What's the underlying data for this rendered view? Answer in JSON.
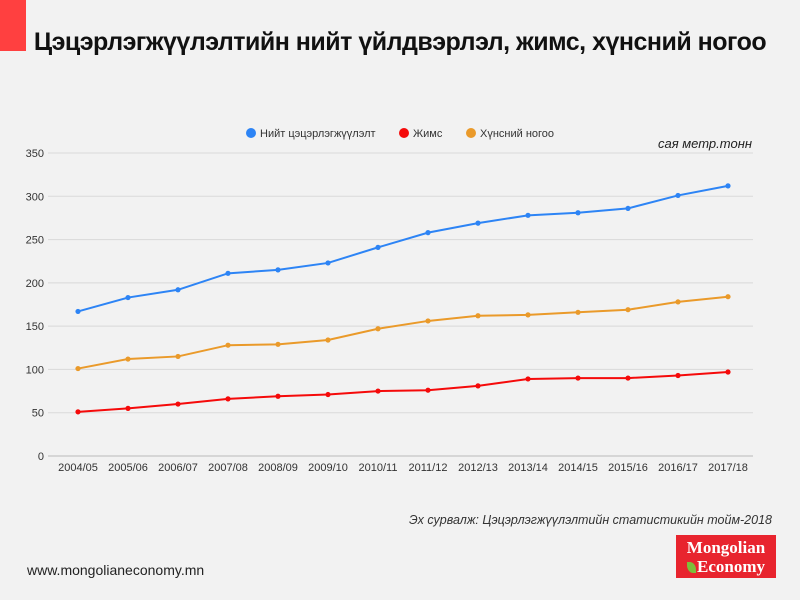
{
  "chart_data": {
    "type": "line",
    "title": "Цэцэрлэгжүүлэлтийн нийт үйлдвэрлэл, жимс, хүнсний ногоо",
    "unit_label": "сая метр.тонн",
    "xlabel": "",
    "ylabel": "",
    "ylim": [
      0,
      350
    ],
    "yticks": [
      0,
      50,
      100,
      150,
      200,
      250,
      300,
      350
    ],
    "grid": true,
    "legend_position": "top-center",
    "categories": [
      "2004/05",
      "2005/06",
      "2006/07",
      "2007/08",
      "2008/09",
      "2009/10",
      "2010/11",
      "2011/12",
      "2012/13",
      "2013/14",
      "2014/15",
      "2015/16",
      "2016/17",
      "2017/18"
    ],
    "series": [
      {
        "name": "Нийт цэцэрлэгжүүлэлт",
        "color": "#2d84f5",
        "values": [
          167,
          183,
          192,
          211,
          215,
          223,
          241,
          258,
          269,
          278,
          281,
          286,
          301,
          312
        ]
      },
      {
        "name": "Жимс",
        "color": "#f50a0a",
        "values": [
          51,
          55,
          60,
          66,
          69,
          71,
          75,
          76,
          81,
          89,
          90,
          90,
          93,
          97
        ]
      },
      {
        "name": "Хүнсний ногоо",
        "color": "#ea9a2a",
        "values": [
          101,
          112,
          115,
          128,
          129,
          134,
          147,
          156,
          162,
          163,
          166,
          169,
          178,
          184
        ]
      }
    ]
  },
  "footer": {
    "source": "Эх сурвалж: Цэцэрлэгжүүлэлтийн статистикийн тойм-2018",
    "website": "www.mongolianeconomy.mn",
    "logo_line1": "Mongolian",
    "logo_line2": "Economy"
  }
}
